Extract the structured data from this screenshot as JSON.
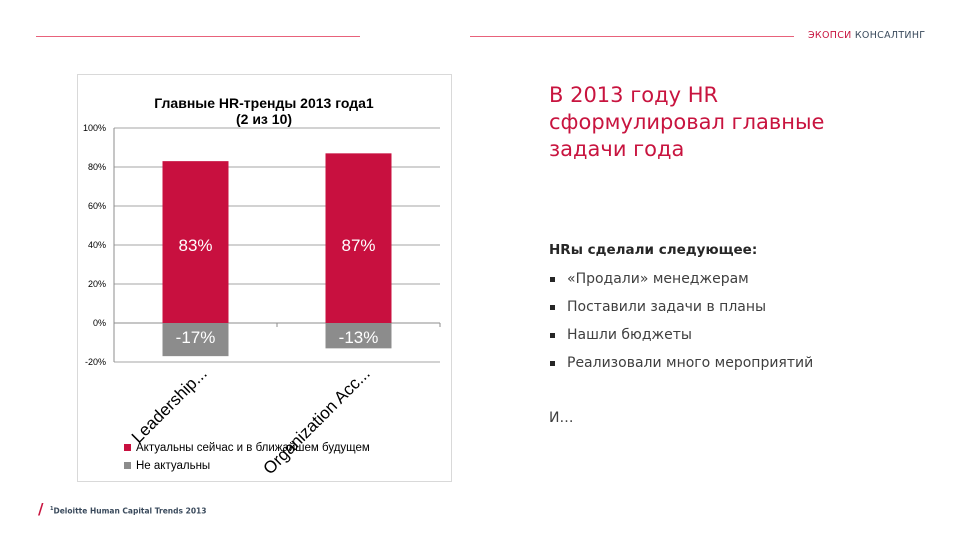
{
  "header": {
    "brand_part1": "ЭКОПСИ",
    "brand_part2": "КОНСАЛТИНГ"
  },
  "colors": {
    "accent": "#c8143f",
    "bar_actual": "#c8103f",
    "bar_not_actual": "#8c8c8c",
    "line": "#e8627b"
  },
  "main": {
    "heading": "В 2013 году HR сформулировал главные задачи года",
    "subhead": "HRы сделали следующее:",
    "bullets": [
      "«Продали» менеджерам",
      "Поставили задачи в планы",
      "Нашли бюджеты",
      "Реализовали много мероприятий"
    ],
    "tail": "И…"
  },
  "footer": {
    "slash": "/",
    "source_sup": "1",
    "source": "Deloitte Human Capital Trends 2013"
  },
  "chart_data": {
    "type": "bar",
    "title": "Главные HR-тренды  2013 года1",
    "subtitle": "(2 из 10)",
    "categories": [
      "Leadership...",
      "Organization Acc..."
    ],
    "series": [
      {
        "name": "Актуальны сейчас и в ближайшем будущем",
        "values": [
          83,
          87
        ],
        "labels": [
          "83%",
          "87%"
        ]
      },
      {
        "name": "Не актуальны",
        "values": [
          -17,
          -13
        ],
        "labels": [
          "-17%",
          "-13%"
        ]
      }
    ],
    "yticks": [
      "100%",
      "80%",
      "60%",
      "40%",
      "20%",
      "0%",
      "-20%"
    ],
    "ylim": [
      -20,
      100
    ],
    "grid": true,
    "legend_position": "bottom"
  }
}
